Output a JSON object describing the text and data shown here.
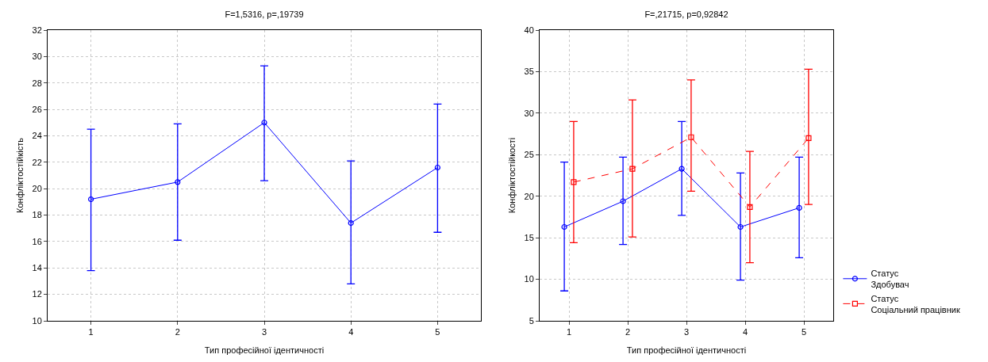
{
  "chart_data": [
    {
      "type": "line",
      "title": "F=1,5316, p=,19739",
      "xlabel": "Тип професійної ідентичності",
      "ylabel": "Конфліктостійкість",
      "categories": [
        "1",
        "2",
        "3",
        "4",
        "5"
      ],
      "ylim": [
        10,
        32
      ],
      "yticks": [
        10,
        12,
        14,
        16,
        18,
        20,
        22,
        24,
        26,
        28,
        30,
        32
      ],
      "grid": true,
      "legend": false,
      "marker": "circle",
      "line_style": "solid",
      "series": [
        {
          "color": "#0000ff",
          "values": [
            19.2,
            20.5,
            25.0,
            17.4,
            21.6
          ],
          "errors": [
            [
              13.8,
              24.5
            ],
            [
              16.1,
              24.9
            ],
            [
              20.6,
              29.3
            ],
            [
              12.8,
              22.1
            ],
            [
              16.7,
              26.4
            ]
          ]
        }
      ]
    },
    {
      "type": "line",
      "title": "F=,21715, p=0,92842",
      "xlabel": "Тип професійної ідентичності",
      "ylabel": "Конфліктостійкості",
      "categories": [
        "1",
        "2",
        "3",
        "4",
        "5"
      ],
      "ylim": [
        5,
        40
      ],
      "yticks": [
        5,
        10,
        15,
        20,
        25,
        30,
        35,
        40
      ],
      "grid": true,
      "legend": "bottom right",
      "series": [
        {
          "name": "Статус\nЗдобувач",
          "color": "#0000ff",
          "marker": "circle",
          "line_style": "solid",
          "values": [
            16.3,
            19.4,
            23.3,
            16.3,
            18.6
          ],
          "errors": [
            [
              8.6,
              24.1
            ],
            [
              14.2,
              24.7
            ],
            [
              17.7,
              29.0
            ],
            [
              9.9,
              22.8
            ],
            [
              12.6,
              24.7
            ]
          ]
        },
        {
          "name": "Статус\nСоціальний працівник",
          "color": "#ff0000",
          "marker": "square",
          "line_style": "dashed",
          "values": [
            21.7,
            23.3,
            27.1,
            18.7,
            27.0
          ],
          "errors": [
            [
              14.4,
              29.0
            ],
            [
              15.1,
              31.6
            ],
            [
              20.6,
              34.0
            ],
            [
              12.0,
              25.4
            ],
            [
              19.0,
              35.3
            ]
          ]
        }
      ]
    }
  ]
}
